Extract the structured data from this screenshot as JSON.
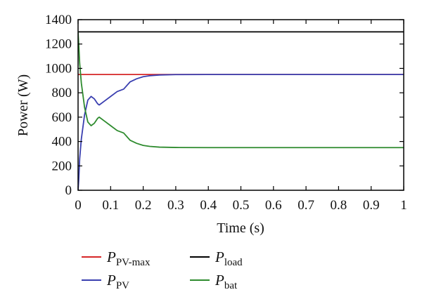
{
  "chart_data": {
    "type": "line",
    "xlabel": "Time (s)",
    "ylabel": "Power (W)",
    "xlim": [
      0,
      1
    ],
    "ylim": [
      0,
      1400
    ],
    "xticks": [
      0,
      0.1,
      0.2,
      0.3,
      0.4,
      0.5,
      0.6,
      0.7,
      0.8,
      0.9,
      1
    ],
    "xtick_labels": [
      "0",
      "0.1",
      "0.2",
      "0.3",
      "0.4",
      "0.5",
      "0.6",
      "0.7",
      "0.8",
      "0.9",
      "1"
    ],
    "yticks": [
      0,
      200,
      400,
      600,
      800,
      1000,
      1200,
      1400
    ],
    "ytick_labels": [
      "0",
      "200",
      "400",
      "600",
      "800",
      "1000",
      "1200",
      "1400"
    ],
    "grid": false,
    "legend_position": "below",
    "series": [
      {
        "name": "P_PV-max",
        "label_main": "P",
        "label_sub": "PV-max",
        "color": "#d62728",
        "x": [
          0,
          1
        ],
        "y": [
          950,
          950
        ]
      },
      {
        "name": "P_load",
        "label_main": "P",
        "label_sub": "load",
        "color": "#000000",
        "x": [
          0,
          1
        ],
        "y": [
          1300,
          1300
        ]
      },
      {
        "name": "P_PV",
        "label_main": "P",
        "label_sub": "PV",
        "color": "#3a3fb0",
        "x": [
          0,
          0.002,
          0.005,
          0.01,
          0.02,
          0.03,
          0.04,
          0.05,
          0.06,
          0.065,
          0.08,
          0.1,
          0.12,
          0.14,
          0.16,
          0.18,
          0.2,
          0.22,
          0.25,
          0.3,
          0.4,
          0.5,
          0.6,
          0.7,
          0.8,
          0.9,
          1
        ],
        "y": [
          0,
          80,
          260,
          420,
          620,
          740,
          770,
          750,
          710,
          700,
          730,
          770,
          810,
          830,
          890,
          915,
          932,
          940,
          946,
          949,
          950,
          950,
          950,
          950,
          950,
          950,
          950
        ]
      },
      {
        "name": "P_bat",
        "label_main": "P",
        "label_sub": "bat",
        "color": "#2e8b2e",
        "x": [
          0,
          0.002,
          0.005,
          0.01,
          0.02,
          0.03,
          0.04,
          0.05,
          0.06,
          0.065,
          0.08,
          0.1,
          0.12,
          0.14,
          0.16,
          0.18,
          0.2,
          0.22,
          0.25,
          0.3,
          0.4,
          0.5,
          0.6,
          0.7,
          0.8,
          0.9,
          1
        ],
        "y": [
          1300,
          1200,
          1040,
          880,
          680,
          560,
          530,
          550,
          590,
          600,
          570,
          530,
          490,
          470,
          410,
          385,
          368,
          360,
          354,
          351,
          350,
          350,
          350,
          350,
          350,
          350,
          350
        ]
      }
    ]
  }
}
